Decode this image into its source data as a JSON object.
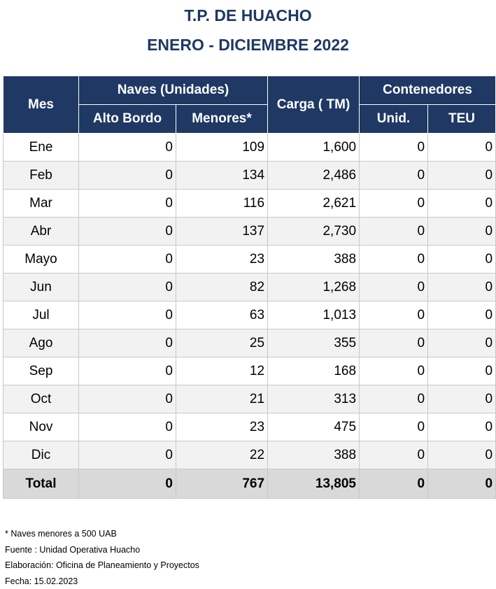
{
  "title": "T.P. DE HUACHO",
  "subtitle": "ENERO - DICIEMBRE 2022",
  "table": {
    "headers": {
      "mes": "Mes",
      "naves": "Naves (Unidades)",
      "alto_bordo": "Alto Bordo",
      "menores": "Menores*",
      "carga": "Carga ( TM)",
      "contenedores": "Contenedores",
      "unid": "Unid.",
      "teu": "TEU"
    },
    "rows": [
      {
        "mes": "Ene",
        "alto_bordo": "0",
        "menores": "109",
        "carga": "1,600",
        "unid": "0",
        "teu": "0"
      },
      {
        "mes": "Feb",
        "alto_bordo": "0",
        "menores": "134",
        "carga": "2,486",
        "unid": "0",
        "teu": "0"
      },
      {
        "mes": "Mar",
        "alto_bordo": "0",
        "menores": "116",
        "carga": "2,621",
        "unid": "0",
        "teu": "0"
      },
      {
        "mes": "Abr",
        "alto_bordo": "0",
        "menores": "137",
        "carga": "2,730",
        "unid": "0",
        "teu": "0"
      },
      {
        "mes": "Mayo",
        "alto_bordo": "0",
        "menores": "23",
        "carga": "388",
        "unid": "0",
        "teu": "0"
      },
      {
        "mes": "Jun",
        "alto_bordo": "0",
        "menores": "82",
        "carga": "1,268",
        "unid": "0",
        "teu": "0"
      },
      {
        "mes": "Jul",
        "alto_bordo": "0",
        "menores": "63",
        "carga": "1,013",
        "unid": "0",
        "teu": "0"
      },
      {
        "mes": "Ago",
        "alto_bordo": "0",
        "menores": "25",
        "carga": "355",
        "unid": "0",
        "teu": "0"
      },
      {
        "mes": "Sep",
        "alto_bordo": "0",
        "menores": "12",
        "carga": "168",
        "unid": "0",
        "teu": "0"
      },
      {
        "mes": "Oct",
        "alto_bordo": "0",
        "menores": "21",
        "carga": "313",
        "unid": "0",
        "teu": "0"
      },
      {
        "mes": "Nov",
        "alto_bordo": "0",
        "menores": "23",
        "carga": "475",
        "unid": "0",
        "teu": "0"
      },
      {
        "mes": "Dic",
        "alto_bordo": "0",
        "menores": "22",
        "carga": "388",
        "unid": "0",
        "teu": "0"
      }
    ],
    "total": {
      "mes": "Total",
      "alto_bordo": "0",
      "menores": "767",
      "carga": "13,805",
      "unid": "0",
      "teu": "0"
    },
    "header_color": "#1f3864",
    "total_row_color": "#d9d9d9"
  },
  "notes": {
    "footnote": "* Naves menores a 500 UAB",
    "fuente": "Fuente : Unidad Operativa Huacho",
    "elaboracion": "Elaboración: Oficina de Planeamiento y Proyectos",
    "fecha": "Fecha: 15.02.2023"
  }
}
